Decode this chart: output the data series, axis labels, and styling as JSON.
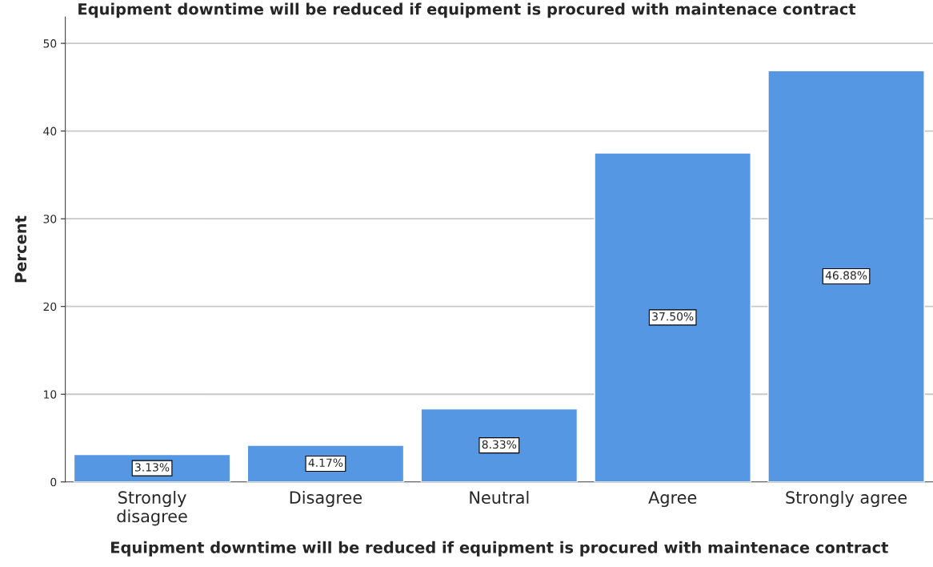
{
  "chart_data": {
    "type": "bar",
    "title": "Equipment downtime will be reduced if equipment is procured with maintenace contract",
    "xlabel": "Equipment downtime will be reduced if equipment is procured with maintenace contract",
    "ylabel": "Percent",
    "categories": [
      "Strongly\ndisagree",
      "Disagree",
      "Neutral",
      "Agree",
      "Strongly agree"
    ],
    "values": [
      3.13,
      4.17,
      8.33,
      37.5,
      46.88
    ],
    "value_labels": [
      "3.13%",
      "4.17%",
      "8.33%",
      "37.50%",
      "46.88%"
    ],
    "color": "#5597e3",
    "ylim": [
      0,
      53
    ],
    "yticks": [
      0,
      10,
      20,
      30,
      40,
      50
    ],
    "grid": "y"
  }
}
